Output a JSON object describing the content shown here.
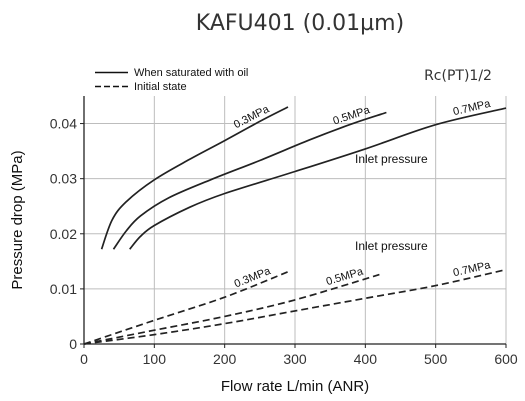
{
  "chart_data": {
    "type": "line",
    "title": "KAFU401 (0.01µm)",
    "port_note": "Rc(PT)1/2",
    "xlabel": "Flow rate L/min (ANR)",
    "ylabel": "Pressure drop (MPa)",
    "xlim": [
      0,
      600
    ],
    "ylim": [
      0,
      0.045
    ],
    "x_ticks": [
      0,
      100,
      200,
      300,
      400,
      500,
      600
    ],
    "x_tick_labels": [
      "0",
      "100",
      "200",
      "300",
      "400",
      "500",
      "600"
    ],
    "y_ticks": [
      0,
      0.01,
      0.02,
      0.03,
      0.04
    ],
    "y_tick_labels": [
      "0",
      "0.01",
      "0.02",
      "0.03",
      "0.04"
    ],
    "grid": true,
    "legend": {
      "position": "top-left",
      "entries": [
        {
          "label": "When saturated with oil",
          "style": "solid"
        },
        {
          "label": "Initial state",
          "style": "dashed"
        }
      ]
    },
    "annotations": [
      "Inlet pressure",
      "Inlet pressure"
    ],
    "series": [
      {
        "name": "0.3MPa",
        "group": "saturated",
        "style": "solid",
        "x": [
          25,
          40,
          60,
          100,
          150,
          200,
          250,
          290
        ],
        "y": [
          0.0172,
          0.0225,
          0.0258,
          0.0298,
          0.0335,
          0.0369,
          0.0404,
          0.043
        ]
      },
      {
        "name": "0.5MPa",
        "group": "saturated",
        "style": "solid",
        "x": [
          42,
          60,
          80,
          120,
          180,
          250,
          320,
          380,
          430
        ],
        "y": [
          0.0172,
          0.0205,
          0.0232,
          0.0265,
          0.0298,
          0.0333,
          0.037,
          0.0399,
          0.042
        ]
      },
      {
        "name": "0.7MPa",
        "group": "saturated",
        "style": "solid",
        "x": [
          65,
          80,
          100,
          150,
          200,
          300,
          400,
          500,
          600
        ],
        "y": [
          0.0172,
          0.0195,
          0.0215,
          0.0248,
          0.0273,
          0.0313,
          0.0354,
          0.0398,
          0.0428
        ]
      },
      {
        "name": "0.3MPa",
        "group": "initial",
        "style": "dashed",
        "x": [
          0,
          100,
          200,
          290
        ],
        "y": [
          0,
          0.0043,
          0.0085,
          0.0131
        ]
      },
      {
        "name": "0.5MPa",
        "group": "initial",
        "style": "dashed",
        "x": [
          0,
          100,
          200,
          300,
          420
        ],
        "y": [
          0,
          0.0025,
          0.005,
          0.008,
          0.0126
        ]
      },
      {
        "name": "0.7MPa",
        "group": "initial",
        "style": "dashed",
        "x": [
          0,
          100,
          200,
          300,
          400,
          500,
          600
        ],
        "y": [
          0,
          0.0017,
          0.0037,
          0.006,
          0.0083,
          0.0106,
          0.0135
        ]
      }
    ]
  }
}
